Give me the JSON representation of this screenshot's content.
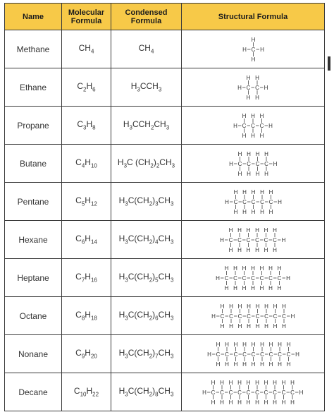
{
  "headers": {
    "name": "Name",
    "molecular": [
      "Molecular",
      "Formula"
    ],
    "condensed": [
      "Condensed",
      "Formula"
    ],
    "structural": "Structural Formula"
  },
  "rows": [
    {
      "name": "Methane",
      "mol_c": "CH",
      "mol_c_sub": "",
      "mol_h": "4",
      "cond": [
        [
          "CH",
          ""
        ],
        [
          "4",
          "s"
        ]
      ],
      "carbons": 1
    },
    {
      "name": "Ethane",
      "mol_c": "C",
      "mol_c_sub": "2",
      "mol_h": "6",
      "cond": [
        [
          "H",
          ""
        ],
        [
          "3",
          "s"
        ],
        [
          "CCH",
          ""
        ],
        [
          "3",
          "s"
        ]
      ],
      "carbons": 2
    },
    {
      "name": "Propane",
      "mol_c": "C",
      "mol_c_sub": "3",
      "mol_h": "8",
      "cond": [
        [
          "H",
          ""
        ],
        [
          "3",
          "s"
        ],
        [
          "CCH",
          ""
        ],
        [
          "2",
          "s"
        ],
        [
          "CH",
          ""
        ],
        [
          "3",
          "s"
        ]
      ],
      "carbons": 3
    },
    {
      "name": "Butane",
      "mol_c": "C",
      "mol_c_sub": "4",
      "mol_h": "10",
      "cond": [
        [
          "H",
          ""
        ],
        [
          "3",
          "s"
        ],
        [
          "C (CH",
          ""
        ],
        [
          "2",
          "s"
        ],
        [
          ")",
          ""
        ],
        [
          "2",
          "s"
        ],
        [
          "CH",
          ""
        ],
        [
          "3",
          "s"
        ]
      ],
      "carbons": 4
    },
    {
      "name": "Pentane",
      "mol_c": "C",
      "mol_c_sub": "5",
      "mol_h": "12",
      "cond": [
        [
          "H",
          ""
        ],
        [
          "3",
          "s"
        ],
        [
          "C(CH",
          ""
        ],
        [
          "2",
          "s"
        ],
        [
          ")",
          ""
        ],
        [
          "3",
          "s"
        ],
        [
          "CH",
          ""
        ],
        [
          "3",
          "s"
        ]
      ],
      "carbons": 5
    },
    {
      "name": "Hexane",
      "mol_c": "C",
      "mol_c_sub": "6",
      "mol_h": "14",
      "cond": [
        [
          "H",
          ""
        ],
        [
          "3",
          "s"
        ],
        [
          "C(CH",
          ""
        ],
        [
          "2",
          "s"
        ],
        [
          ")",
          ""
        ],
        [
          "4",
          "s"
        ],
        [
          "CH",
          ""
        ],
        [
          "3",
          "s"
        ]
      ],
      "carbons": 6
    },
    {
      "name": "Heptane",
      "mol_c": "C",
      "mol_c_sub": "7",
      "mol_h": "16",
      "cond": [
        [
          "H",
          ""
        ],
        [
          "3",
          "s"
        ],
        [
          "C(CH",
          ""
        ],
        [
          "2",
          "s"
        ],
        [
          ")",
          ""
        ],
        [
          "5",
          "s"
        ],
        [
          "CH",
          ""
        ],
        [
          "3",
          "s"
        ]
      ],
      "carbons": 7
    },
    {
      "name": "Octane",
      "mol_c": "C",
      "mol_c_sub": "8",
      "mol_h": "18",
      "cond": [
        [
          "H",
          ""
        ],
        [
          "3",
          "s"
        ],
        [
          "C(CH",
          ""
        ],
        [
          "2",
          "s"
        ],
        [
          ")",
          ""
        ],
        [
          "6",
          "s"
        ],
        [
          "CH",
          ""
        ],
        [
          "3",
          "s"
        ]
      ],
      "carbons": 8
    },
    {
      "name": "Nonane",
      "mol_c": "C",
      "mol_c_sub": "9",
      "mol_h": "20",
      "cond": [
        [
          "H",
          ""
        ],
        [
          "3",
          "s"
        ],
        [
          "C(CH",
          ""
        ],
        [
          "2",
          "s"
        ],
        [
          ")",
          ""
        ],
        [
          "7",
          "s"
        ],
        [
          "CH",
          ""
        ],
        [
          "3",
          "s"
        ]
      ],
      "carbons": 9
    },
    {
      "name": "Decane",
      "mol_c": "C",
      "mol_c_sub": "10",
      "mol_h": "22",
      "cond": [
        [
          "H",
          ""
        ],
        [
          "3",
          "s"
        ],
        [
          "C(CH",
          ""
        ],
        [
          "2",
          "s"
        ],
        [
          ")",
          ""
        ],
        [
          "8",
          "s"
        ],
        [
          "CH",
          ""
        ],
        [
          "3",
          "s"
        ]
      ],
      "carbons": 10
    }
  ],
  "atoms": {
    "carbon": "C",
    "hydrogen": "H"
  }
}
